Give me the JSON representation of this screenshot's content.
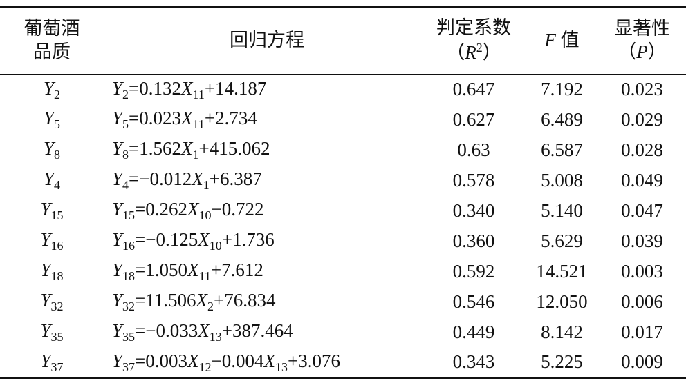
{
  "table": {
    "header": [
      [
        [
          "葡萄酒"
        ],
        [
          "品质"
        ]
      ],
      [
        [
          "回归方程"
        ]
      ],
      [
        [
          "判定系数"
        ],
        [
          "（",
          {
            "t": "R",
            "sup": "2"
          },
          "）"
        ]
      ],
      [
        [
          {
            "t": "F"
          },
          " 值"
        ]
      ],
      [
        [
          "显著性"
        ],
        [
          "（",
          {
            "t": "P"
          },
          "）"
        ]
      ]
    ],
    "rows": [
      [
        [
          {
            "t": "Y",
            "sub": "2"
          }
        ],
        [
          {
            "t": "Y",
            "sub": "2"
          },
          "=0.132",
          {
            "t": "X",
            "sub": "11"
          },
          "+14.187"
        ],
        "0.647",
        "7.192",
        "0.023"
      ],
      [
        [
          {
            "t": "Y",
            "sub": "5"
          }
        ],
        [
          {
            "t": "Y",
            "sub": "5"
          },
          "=0.023",
          {
            "t": "X",
            "sub": "11"
          },
          "+2.734"
        ],
        "0.627",
        "6.489",
        "0.029"
      ],
      [
        [
          {
            "t": "Y",
            "sub": "8"
          }
        ],
        [
          {
            "t": "Y",
            "sub": "8"
          },
          "=1.562",
          {
            "t": "X",
            "sub": "1"
          },
          "+415.062"
        ],
        "0.63",
        "6.587",
        "0.028"
      ],
      [
        [
          {
            "t": "Y",
            "sub": "4"
          }
        ],
        [
          {
            "t": "Y",
            "sub": "4"
          },
          "=−0.012",
          {
            "t": "X",
            "sub": "1"
          },
          "+6.387"
        ],
        "0.578",
        "5.008",
        "0.049"
      ],
      [
        [
          {
            "t": "Y",
            "sub": "15"
          }
        ],
        [
          {
            "t": "Y",
            "sub": "15"
          },
          "=0.262",
          {
            "t": "X",
            "sub": "10"
          },
          "−0.722"
        ],
        "0.340",
        "5.140",
        "0.047"
      ],
      [
        [
          {
            "t": "Y",
            "sub": "16"
          }
        ],
        [
          {
            "t": "Y",
            "sub": "16"
          },
          "=−0.125",
          {
            "t": "X",
            "sub": "10"
          },
          "+1.736"
        ],
        "0.360",
        "5.629",
        "0.039"
      ],
      [
        [
          {
            "t": "Y",
            "sub": "18"
          }
        ],
        [
          {
            "t": "Y",
            "sub": "18"
          },
          "=1.050",
          {
            "t": "X",
            "sub": "11"
          },
          "+7.612"
        ],
        "0.592",
        "14.521",
        "0.003"
      ],
      [
        [
          {
            "t": "Y",
            "sub": "32"
          }
        ],
        [
          {
            "t": "Y",
            "sub": "32"
          },
          "=11.506",
          {
            "t": "X",
            "sub": "2"
          },
          "+76.834"
        ],
        "0.546",
        "12.050",
        "0.006"
      ],
      [
        [
          {
            "t": "Y",
            "sub": "35"
          }
        ],
        [
          {
            "t": "Y",
            "sub": "35"
          },
          "=−0.033",
          {
            "t": "X",
            "sub": "13"
          },
          "+387.464"
        ],
        "0.449",
        "8.142",
        "0.017"
      ],
      [
        [
          {
            "t": "Y",
            "sub": "37"
          }
        ],
        [
          {
            "t": "Y",
            "sub": "37"
          },
          "=0.003",
          {
            "t": "X",
            "sub": "12"
          },
          "−0.004",
          {
            "t": "X",
            "sub": "13"
          },
          "+3.076"
        ],
        "0.343",
        "5.225",
        "0.009"
      ]
    ]
  }
}
